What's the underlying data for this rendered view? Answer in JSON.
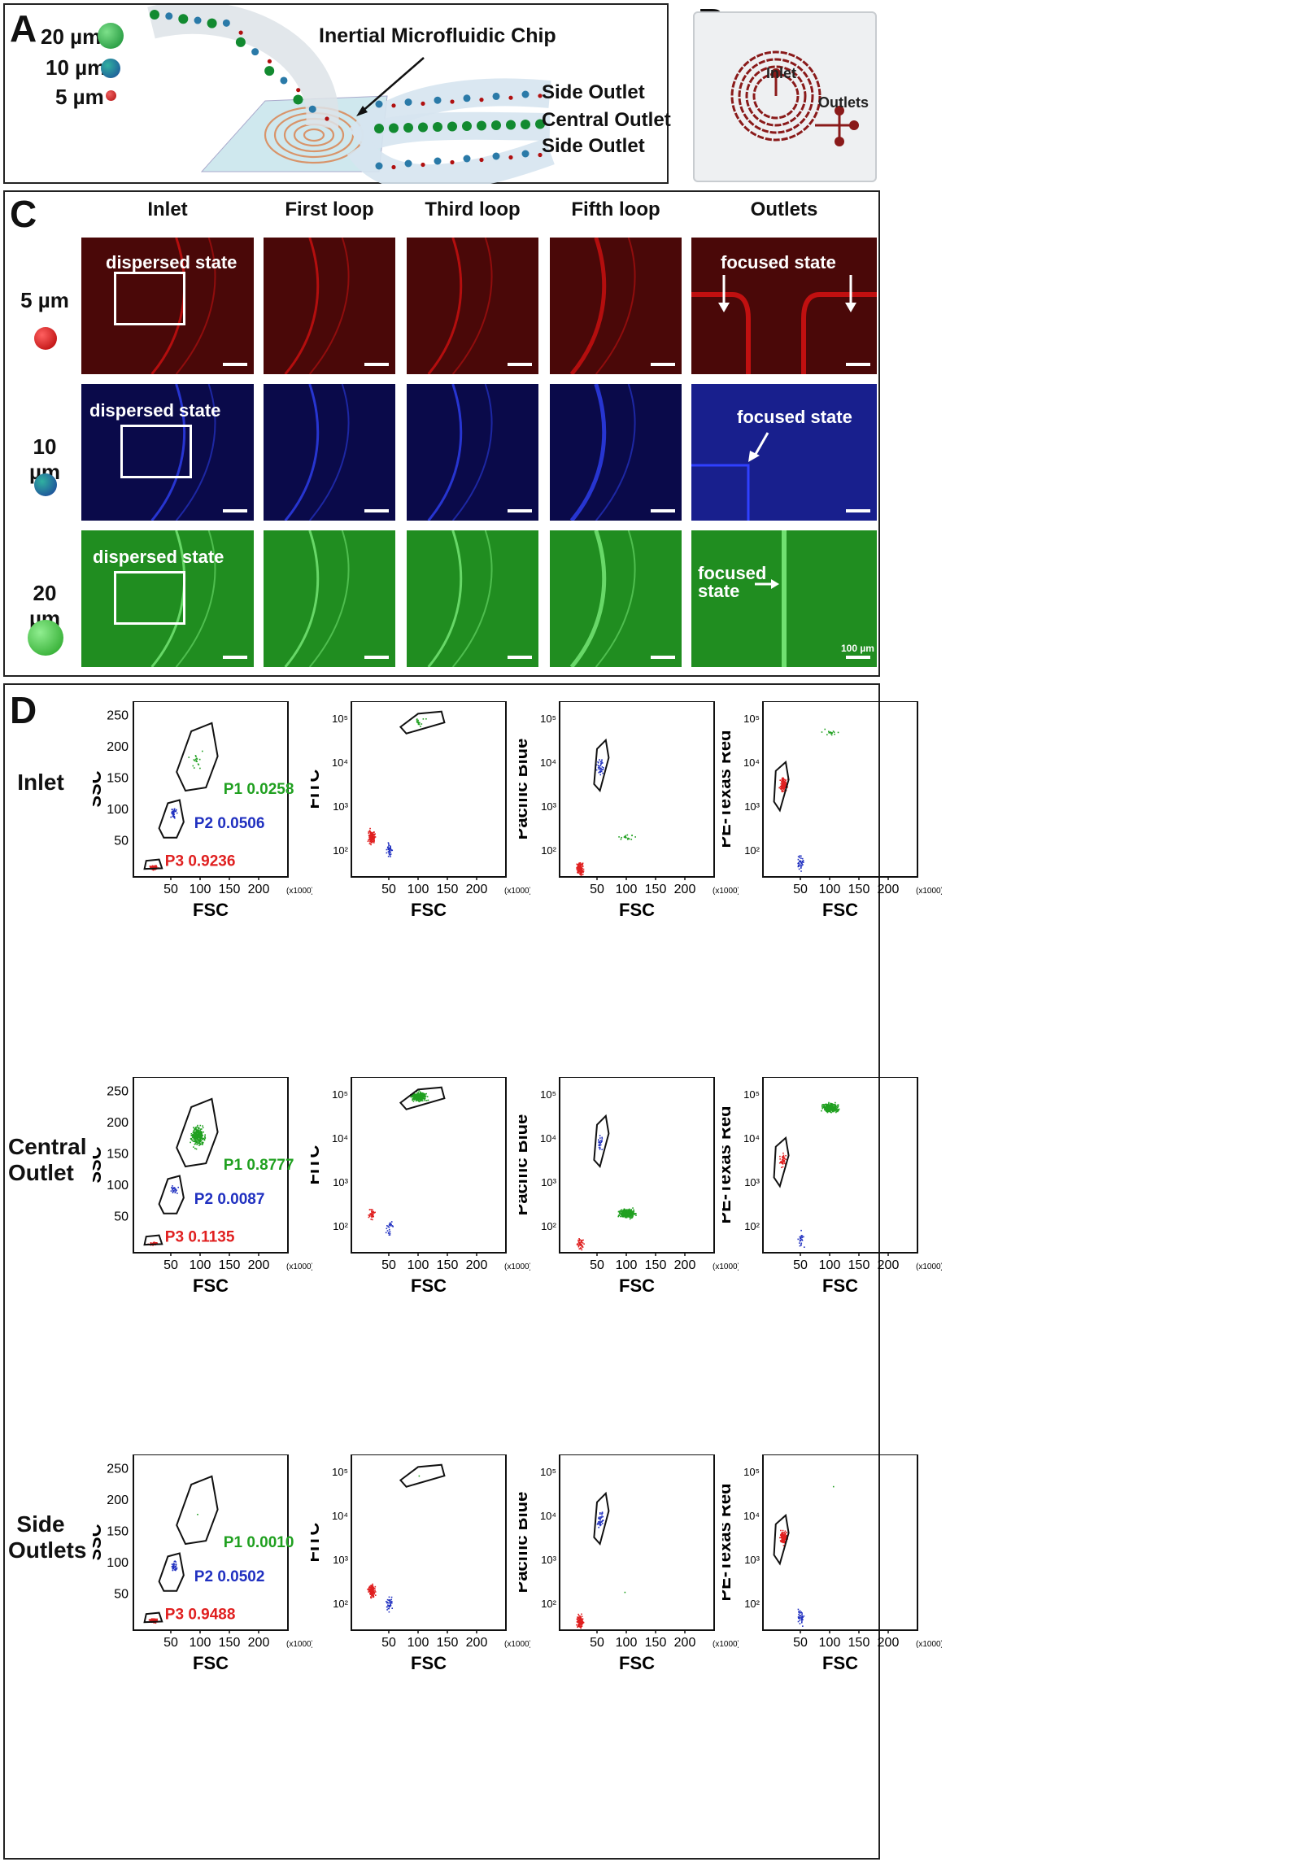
{
  "panelA": {
    "label": "A",
    "sizes": [
      {
        "text": "20 µm",
        "color": "#1a9a3a"
      },
      {
        "text": "10 µm",
        "color": "#2a6aa8"
      },
      {
        "text": "5 µm",
        "color": "#c81e1e"
      }
    ],
    "chip_title": "Inertial Microfluidic Chip",
    "outlets": [
      "Side Outlet",
      "Central Outlet",
      "Side Outlet"
    ]
  },
  "panelB": {
    "label": "B",
    "inlet": "Inlet",
    "outlets": "Outlets"
  },
  "panelC": {
    "label": "C",
    "columns": [
      "Inlet",
      "First loop",
      "Third loop",
      "Fifth loop",
      "Outlets"
    ],
    "rows": [
      {
        "size": "5 µm",
        "dispersed": "dispersed state",
        "focused": "focused state",
        "color": "#d01010"
      },
      {
        "size": "10 µm",
        "dispersed": "dispersed state",
        "focused": "focused state",
        "color": "#2030c0"
      },
      {
        "size": "20 µm",
        "dispersed": "dispersed state",
        "focused": "focused\nstate",
        "color": "#30c030"
      }
    ],
    "scale_label": "100 µm"
  },
  "panelD": {
    "label": "D",
    "row_labels": [
      "Inlet",
      "Central\nOutlet",
      "Side\nOutlets"
    ],
    "xlabel": "FSC",
    "x_unit": "(x1000)",
    "x_ticks": [
      "50",
      "100",
      "150",
      "200"
    ],
    "ssc_ticks": [
      "50",
      "100",
      "150",
      "200",
      "250"
    ],
    "ylabels": [
      "SSC",
      "FITC",
      "Pacific Blue",
      "PE-Texas Red"
    ],
    "gates": [
      "P1",
      "P2",
      "P3"
    ],
    "gate_colors": [
      "#20a020",
      "#2030c0",
      "#e02020"
    ],
    "chart_data": [
      {
        "type": "scatter",
        "row": "Inlet",
        "xlabel": "FSC",
        "ylabel": "SSC",
        "P1": "0.0258",
        "P2": "0.0506",
        "P3": "0.9236"
      },
      {
        "type": "scatter",
        "row": "Central Outlet",
        "xlabel": "FSC",
        "ylabel": "SSC",
        "P1": "0.8777",
        "P2": "0.0087",
        "P3": "0.1135"
      },
      {
        "type": "scatter",
        "row": "Side Outlets",
        "xlabel": "FSC",
        "ylabel": "SSC",
        "P1": "0.0010",
        "P2": "0.0502",
        "P3": "0.9488"
      }
    ]
  }
}
